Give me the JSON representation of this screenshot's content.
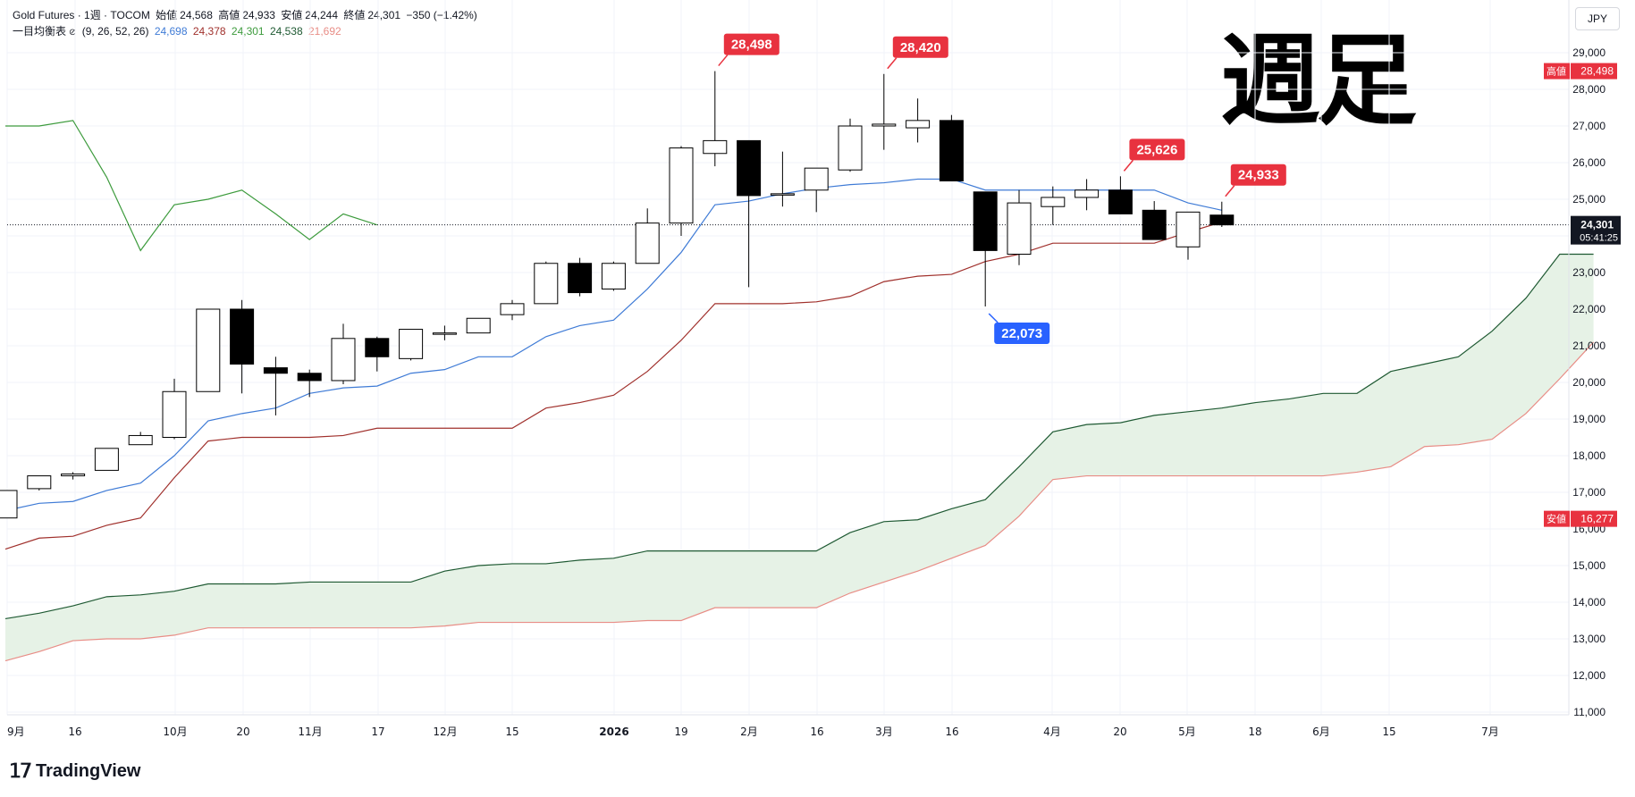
{
  "header": {
    "symbol": "Gold Futures · 1週 · TOCOM",
    "open_label": "始値",
    "open": "24,568",
    "high_label": "高値",
    "high": "24,933",
    "low_label": "安値",
    "low": "24,244",
    "close_label": "終値",
    "close": "24,301",
    "change": "−350 (−1.42%)",
    "indicator_name": "一目均衡表",
    "indicator_params": "(9, 26, 52, 26)",
    "ind_values": [
      "24,698",
      "24,378",
      "24,301",
      "24,538",
      "21,692"
    ]
  },
  "title_overlay": "週足",
  "currency": "JPY",
  "footer_brand": "TradingView",
  "colors": {
    "tenkan": "#3f7bd6",
    "kijun": "#a0302c",
    "chikou": "#3d9b3d",
    "span_a": "#1f5a33",
    "span_b": "#e88d86",
    "cloud": "#e6f2e6",
    "label_red": "#e8323f",
    "label_blue": "#2962ff",
    "grid": "#f0f3fa"
  },
  "chart_data": {
    "type": "candlestick",
    "y_range": [
      10700,
      29700
    ],
    "y_ticks": [
      "29,000",
      "28,000",
      "27,000",
      "26,000",
      "25,000",
      "24,000",
      "23,000",
      "22,000",
      "21,000",
      "20,000",
      "19,000",
      "18,000",
      "17,000",
      "16,000",
      "15,000",
      "14,000",
      "13,000",
      "12,000",
      "11,000"
    ],
    "x_labels": [
      "9月",
      "16",
      "10月",
      "20",
      "11月",
      "17",
      "12月",
      "15",
      "2026",
      "19",
      "2月",
      "16",
      "3月",
      "16",
      "4月",
      "20",
      "5月",
      "18",
      "6月",
      "15",
      "7月"
    ],
    "candles": [
      {
        "o": 16300,
        "h": 17050,
        "l": 16300,
        "c": 17050
      },
      {
        "o": 17100,
        "h": 17450,
        "l": 17050,
        "c": 17450
      },
      {
        "o": 17450,
        "h": 17550,
        "l": 17350,
        "c": 17500
      },
      {
        "o": 17600,
        "h": 18200,
        "l": 17600,
        "c": 18200
      },
      {
        "o": 18300,
        "h": 18650,
        "l": 18300,
        "c": 18550
      },
      {
        "o": 18500,
        "h": 20100,
        "l": 18450,
        "c": 19750
      },
      {
        "o": 19750,
        "h": 22000,
        "l": 19750,
        "c": 22000
      },
      {
        "o": 22000,
        "h": 22250,
        "l": 19700,
        "c": 20500
      },
      {
        "o": 20400,
        "h": 20700,
        "l": 19100,
        "c": 20250
      },
      {
        "o": 20250,
        "h": 20350,
        "l": 19600,
        "c": 20050
      },
      {
        "o": 20050,
        "h": 21600,
        "l": 19950,
        "c": 21200
      },
      {
        "o": 21200,
        "h": 21250,
        "l": 20300,
        "c": 20700
      },
      {
        "o": 20650,
        "h": 21450,
        "l": 20600,
        "c": 21450
      },
      {
        "o": 21350,
        "h": 21550,
        "l": 21150,
        "c": 21350
      },
      {
        "o": 21350,
        "h": 21750,
        "l": 21350,
        "c": 21750
      },
      {
        "o": 21850,
        "h": 22250,
        "l": 21700,
        "c": 22150
      },
      {
        "o": 22150,
        "h": 23300,
        "l": 22150,
        "c": 23250
      },
      {
        "o": 23250,
        "h": 23400,
        "l": 22350,
        "c": 22450
      },
      {
        "o": 22550,
        "h": 23300,
        "l": 22500,
        "c": 23250
      },
      {
        "o": 23250,
        "h": 24750,
        "l": 23250,
        "c": 24350
      },
      {
        "o": 24350,
        "h": 26450,
        "l": 24000,
        "c": 26400
      },
      {
        "o": 26250,
        "h": 28498,
        "l": 25900,
        "c": 26600
      },
      {
        "o": 26600,
        "h": 26600,
        "l": 22600,
        "c": 25100
      },
      {
        "o": 25150,
        "h": 26300,
        "l": 24800,
        "c": 25150
      },
      {
        "o": 25250,
        "h": 25850,
        "l": 24650,
        "c": 25850
      },
      {
        "o": 25800,
        "h": 27200,
        "l": 25750,
        "c": 27000
      },
      {
        "o": 27000,
        "h": 28420,
        "l": 26350,
        "c": 27050
      },
      {
        "o": 26950,
        "h": 27750,
        "l": 26550,
        "c": 27150
      },
      {
        "o": 27150,
        "h": 27300,
        "l": 25500,
        "c": 25500
      },
      {
        "o": 25200,
        "h": 25200,
        "l": 22073,
        "c": 23600
      },
      {
        "o": 23500,
        "h": 25250,
        "l": 23200,
        "c": 24900
      },
      {
        "o": 24800,
        "h": 25350,
        "l": 24300,
        "c": 25050
      },
      {
        "o": 25050,
        "h": 25550,
        "l": 24700,
        "c": 25250
      },
      {
        "o": 25250,
        "h": 25626,
        "l": 24600,
        "c": 24600
      },
      {
        "o": 24700,
        "h": 24950,
        "l": 23900,
        "c": 23900
      },
      {
        "o": 23700,
        "h": 24650,
        "l": 23350,
        "c": 24650
      },
      {
        "o": 24568,
        "h": 24933,
        "l": 24244,
        "c": 24301
      }
    ],
    "tenkan": [
      16500,
      16700,
      16750,
      17050,
      17250,
      18000,
      18950,
      19150,
      19300,
      19700,
      19850,
      19900,
      20250,
      20350,
      20700,
      20700,
      21250,
      21550,
      21700,
      22550,
      23550,
      24850,
      24950,
      25150,
      25300,
      25400,
      25450,
      25550,
      25550,
      25250,
      25250,
      25250,
      25250,
      25250,
      25250,
      24900,
      24700
    ],
    "kijun": [
      15450,
      15750,
      15800,
      16100,
      16300,
      17400,
      18400,
      18500,
      18500,
      18500,
      18550,
      18750,
      18750,
      18750,
      18750,
      18750,
      19300,
      19450,
      19650,
      20300,
      21150,
      22150,
      22150,
      22150,
      22200,
      22350,
      22750,
      22900,
      22950,
      23300,
      23500,
      23800,
      23800,
      23800,
      23800,
      24100,
      24378
    ],
    "chikou": [
      27000,
      27000,
      27150,
      25600,
      23600,
      24850,
      25000,
      25250,
      24600,
      23900,
      24600,
      24300
    ],
    "span_a": [
      13550,
      13700,
      13900,
      14150,
      14200,
      14300,
      14500,
      14500,
      14500,
      14550,
      14550,
      14550,
      14550,
      14850,
      15000,
      15050,
      15050,
      15150,
      15200,
      15400,
      15400,
      15400,
      15400,
      15400,
      15400,
      15900,
      16200,
      16250,
      16550,
      16800,
      17700,
      18650,
      18850,
      18900,
      19100,
      19200,
      19300,
      19450,
      19550,
      19700,
      19700,
      20300,
      20500,
      20700,
      21400,
      22300,
      23500,
      23500
    ],
    "span_b": [
      12400,
      12650,
      12950,
      13000,
      13000,
      13100,
      13300,
      13300,
      13300,
      13300,
      13300,
      13300,
      13300,
      13350,
      13450,
      13450,
      13450,
      13450,
      13450,
      13500,
      13500,
      13850,
      13850,
      13850,
      13850,
      14250,
      14550,
      14850,
      15200,
      15550,
      16350,
      17350,
      17450,
      17450,
      17450,
      17450,
      17450,
      17450,
      17450,
      17450,
      17550,
      17700,
      18250,
      18300,
      18450,
      19150,
      20100,
      21100
    ],
    "annotations": [
      {
        "text": "28,498",
        "candle": 21,
        "price": 28498,
        "color": "red"
      },
      {
        "text": "28,420",
        "candle": 26,
        "price": 28420,
        "color": "red"
      },
      {
        "text": "25,626",
        "candle": 33,
        "price": 25626,
        "color": "red"
      },
      {
        "text": "24,933",
        "candle": 36,
        "price": 24933,
        "color": "red"
      },
      {
        "text": "22,073",
        "candle": 29,
        "price": 22073,
        "color": "blue"
      }
    ],
    "axis_badges": [
      {
        "label": "高値",
        "value": "28,498",
        "price": 28498
      },
      {
        "label": "安値",
        "value": "16,277",
        "price": 16277
      }
    ],
    "last_price": {
      "value": "24,301",
      "countdown": "05:41:25",
      "price": 24301
    }
  }
}
